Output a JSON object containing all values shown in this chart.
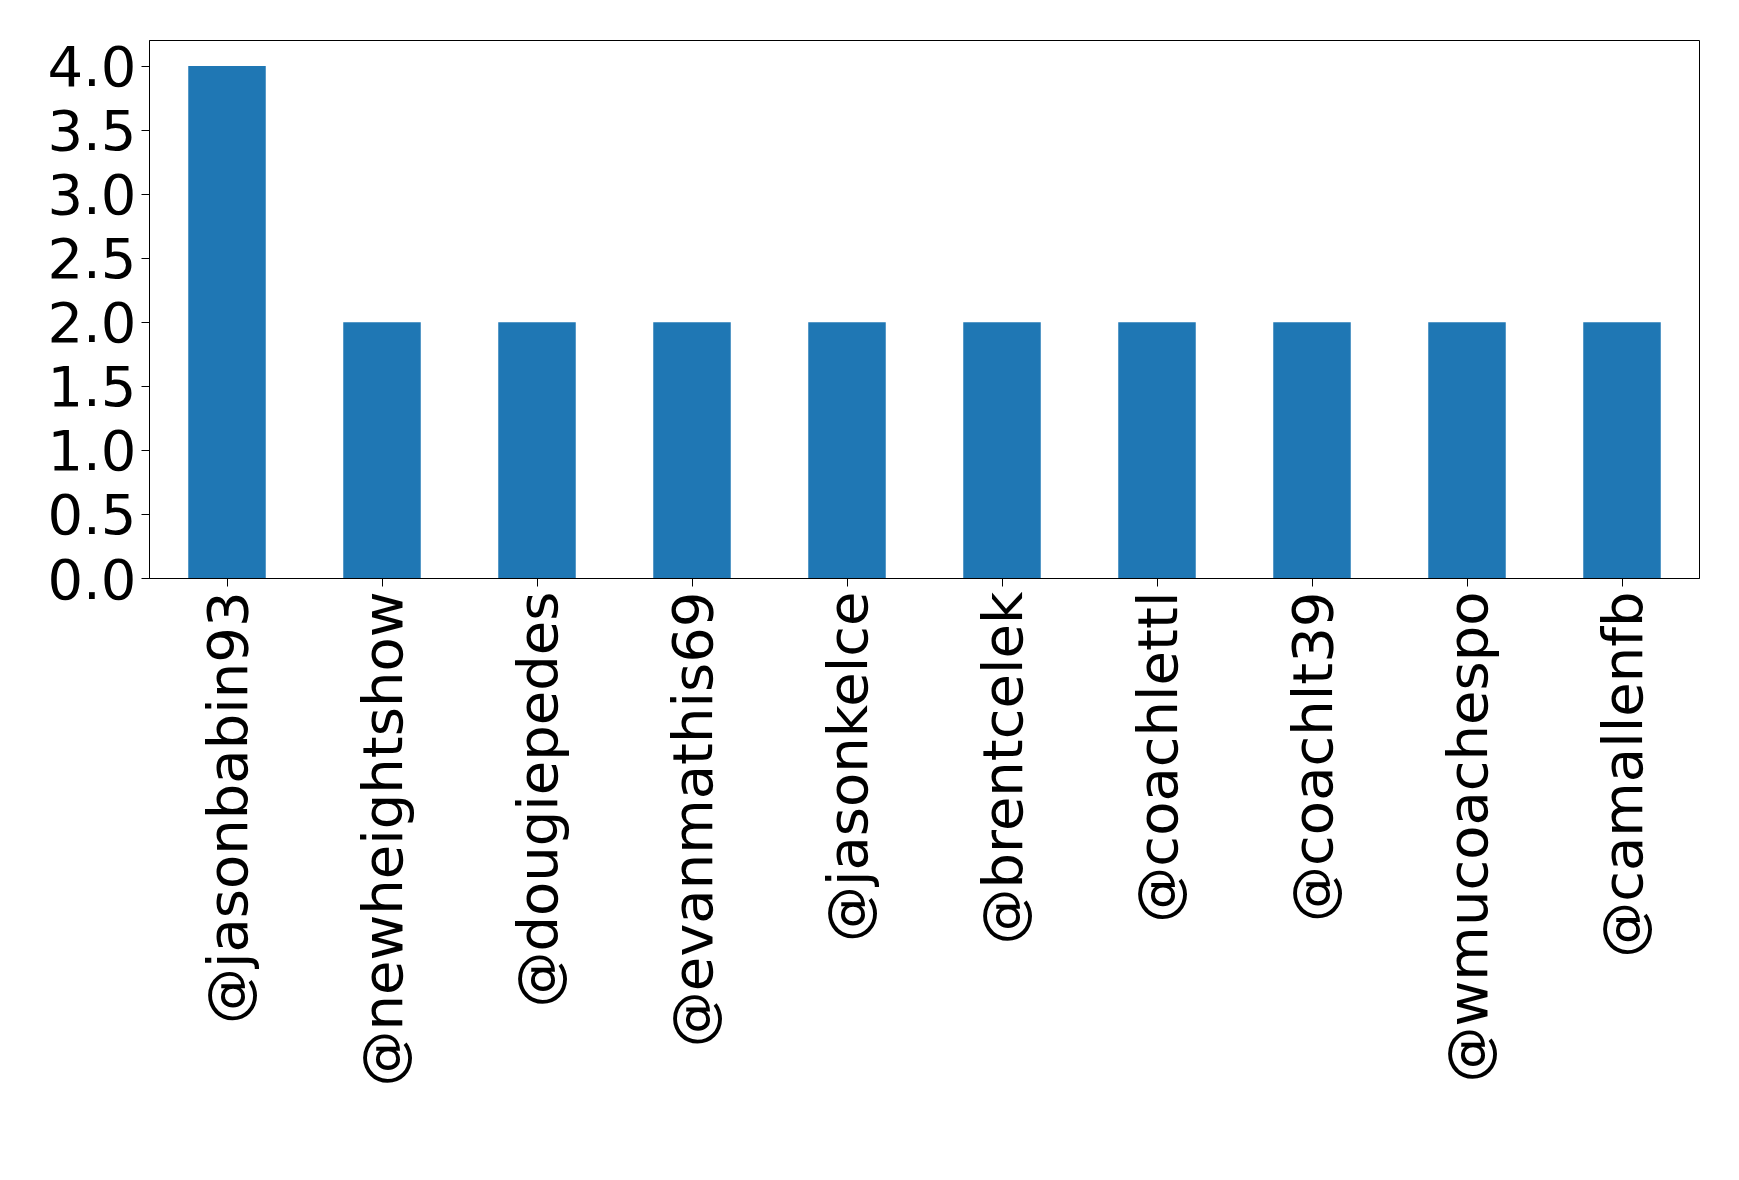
{
  "chart_data": {
    "type": "bar",
    "categories": [
      "@jasonbabin93",
      "@newheightshow",
      "@dougiepedes",
      "@evanmathis69",
      "@jasonkelce",
      "@brentcelek",
      "@coachlettl",
      "@coachlt39",
      "@wmucoachespo",
      "@camallenfb"
    ],
    "values": [
      4,
      2,
      2,
      2,
      2,
      2,
      2,
      2,
      2,
      2
    ],
    "color": "#1f77b4",
    "ylim": [
      0,
      4.2
    ],
    "yticks": [
      {
        "value": 0,
        "label": "0.0"
      },
      {
        "value": 0.5,
        "label": "0.5"
      },
      {
        "value": 1,
        "label": "1.0"
      },
      {
        "value": 1.5,
        "label": "1.5"
      },
      {
        "value": 2,
        "label": "2.0"
      },
      {
        "value": 2.5,
        "label": "2.5"
      },
      {
        "value": 3,
        "label": "3.0"
      },
      {
        "value": 3.5,
        "label": "3.5"
      },
      {
        "value": 4,
        "label": "4.0"
      }
    ],
    "grid": false
  }
}
